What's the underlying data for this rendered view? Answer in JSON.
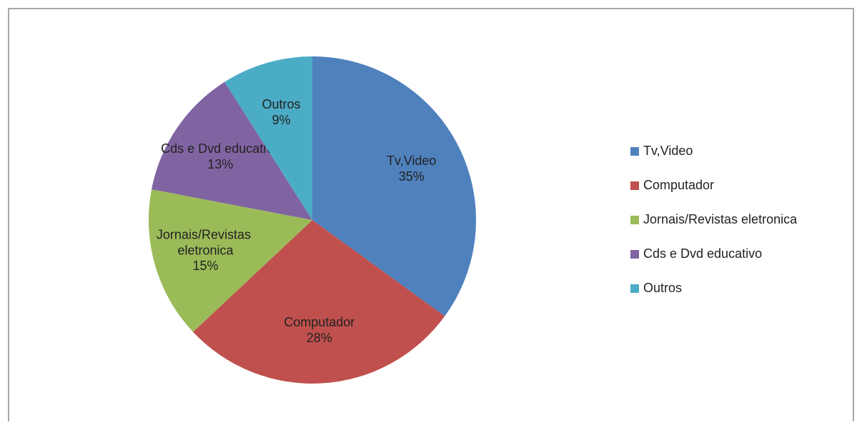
{
  "chart_data": {
    "type": "pie",
    "categories": [
      "Tv,Video",
      "Computador",
      "Jornais/Revistas eletronica",
      "Cds e Dvd educativo",
      "Outros"
    ],
    "values": [
      35,
      28,
      15,
      13,
      9
    ],
    "value_labels": [
      "35%",
      "28%",
      "15%",
      "13%",
      "9%"
    ],
    "colors": [
      "#4f81bd",
      "#c0504d",
      "#9bbb59",
      "#8064a2",
      "#4bacc6"
    ],
    "legend": "right"
  }
}
